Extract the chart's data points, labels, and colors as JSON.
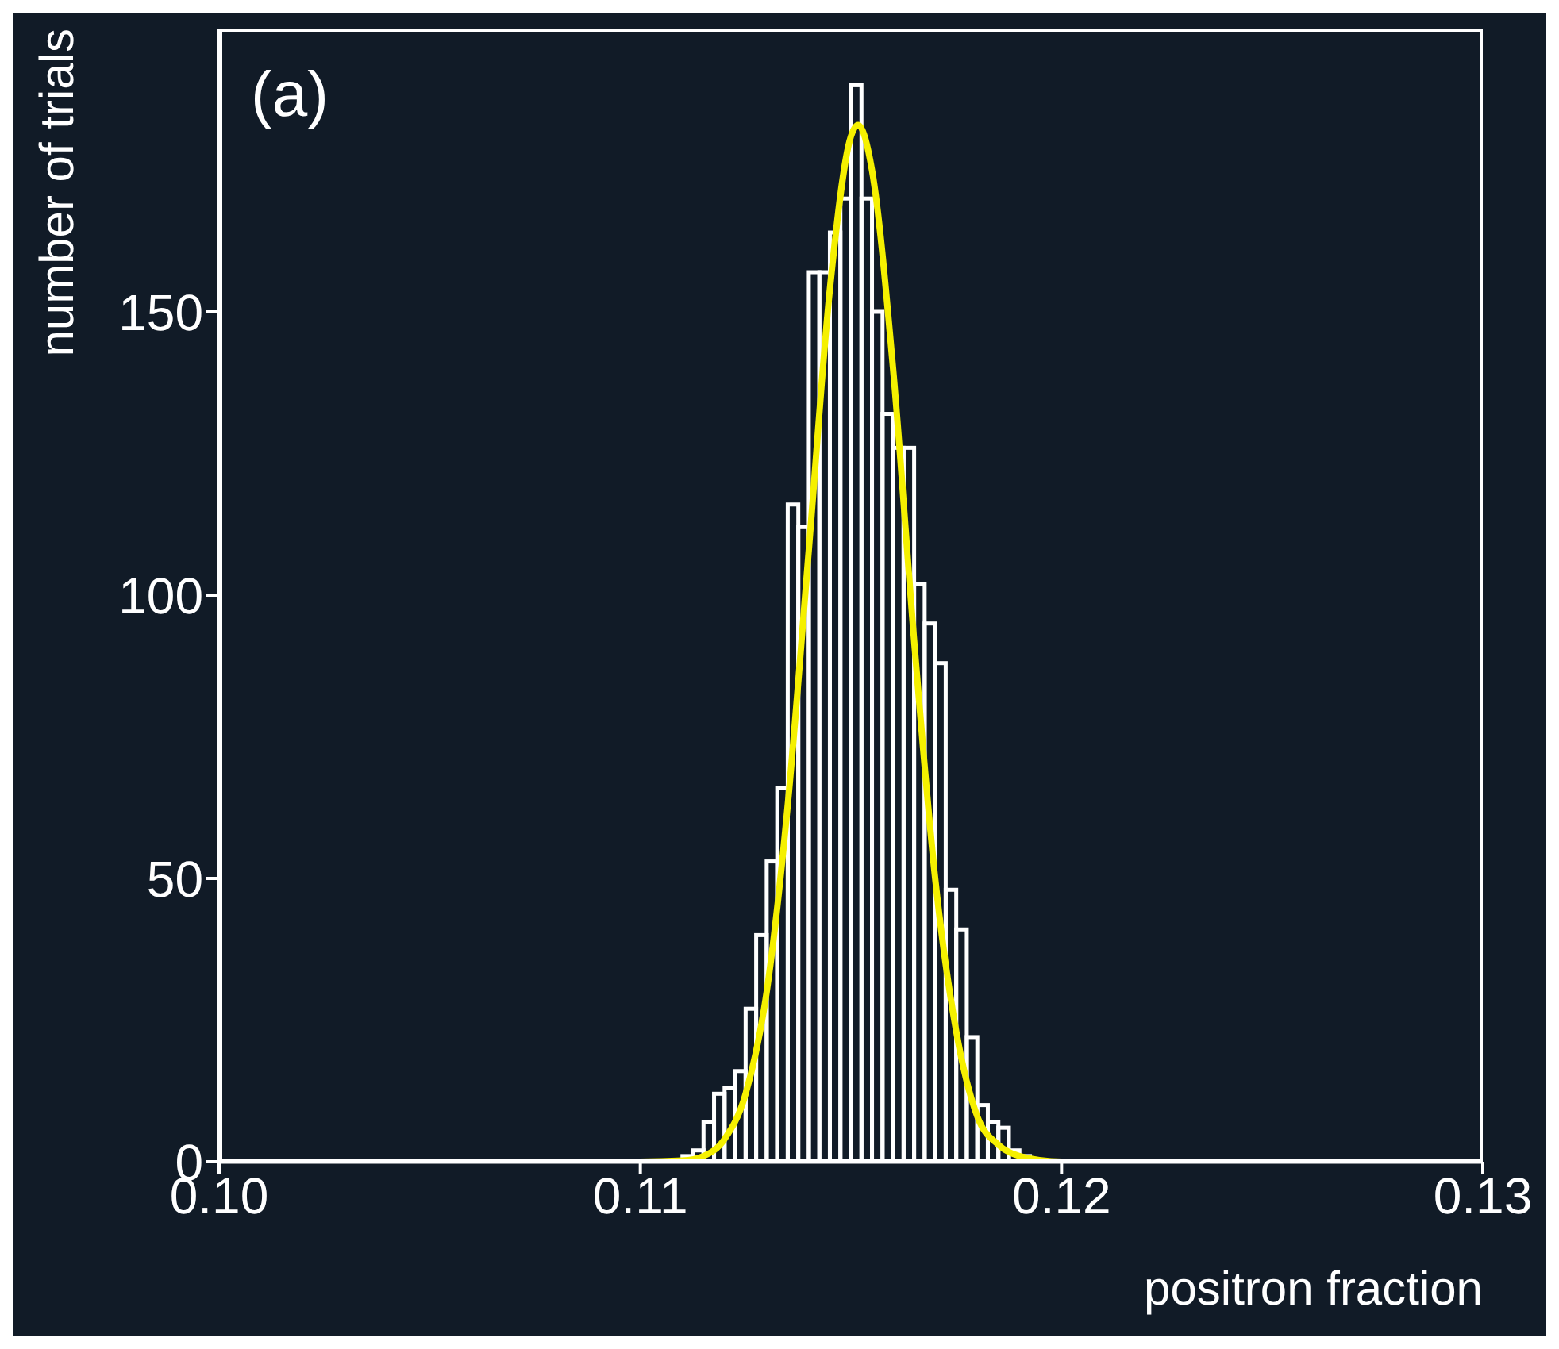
{
  "chart_data": {
    "type": "histogram",
    "xlabel": "positron fraction",
    "ylabel": "number of trials",
    "annotations": [
      "(a)"
    ],
    "xlim": [
      0.1,
      0.13
    ],
    "xticks": [
      {
        "value": 0.1,
        "label": "0.10"
      },
      {
        "value": 0.11,
        "label": "0.11"
      },
      {
        "value": 0.12,
        "label": "0.12"
      },
      {
        "value": 0.13,
        "label": "0.13"
      }
    ],
    "ylim": [
      0,
      200
    ],
    "yticks": [
      0,
      50,
      100,
      150
    ],
    "series": [
      {
        "color": "#ffffff",
        "bins": [
          0.111,
          0.11125,
          0.1115,
          0.11175,
          0.112,
          0.11225,
          0.1125,
          0.11275,
          0.113,
          0.11325,
          0.1135,
          0.11375,
          0.114,
          0.11425,
          0.1145,
          0.11475,
          0.115,
          0.11525,
          0.1155,
          0.11575,
          0.116,
          0.11625,
          0.1165,
          0.11675,
          0.117,
          0.11725,
          0.1175,
          0.11775,
          0.118,
          0.11825,
          0.1185,
          0.11875,
          0.119,
          0.11925,
          0.1195
        ],
        "values": [
          1,
          2,
          7,
          12,
          13,
          16,
          27,
          40,
          53,
          66,
          116,
          112,
          157,
          157,
          164,
          170,
          190,
          170,
          150,
          132,
          126,
          126,
          102,
          95,
          88,
          48,
          41,
          22,
          10,
          7,
          6,
          2,
          1,
          0
        ]
      },
      {
        "type": "line",
        "color": "#f5f000",
        "x": [
          0.1,
          0.11,
          0.111,
          0.1115,
          0.112,
          0.1125,
          0.113,
          0.1135,
          0.114,
          0.1145,
          0.115,
          0.11517,
          0.1155,
          0.116,
          0.1165,
          0.117,
          0.1175,
          0.118,
          0.1185,
          0.119,
          0.12,
          0.13
        ],
        "values": [
          0,
          0,
          0.2,
          1,
          4,
          12,
          30,
          63,
          108,
          154,
          181,
          183,
          175,
          140,
          92,
          50,
          23,
          8,
          3,
          1,
          0,
          0
        ]
      }
    ]
  }
}
